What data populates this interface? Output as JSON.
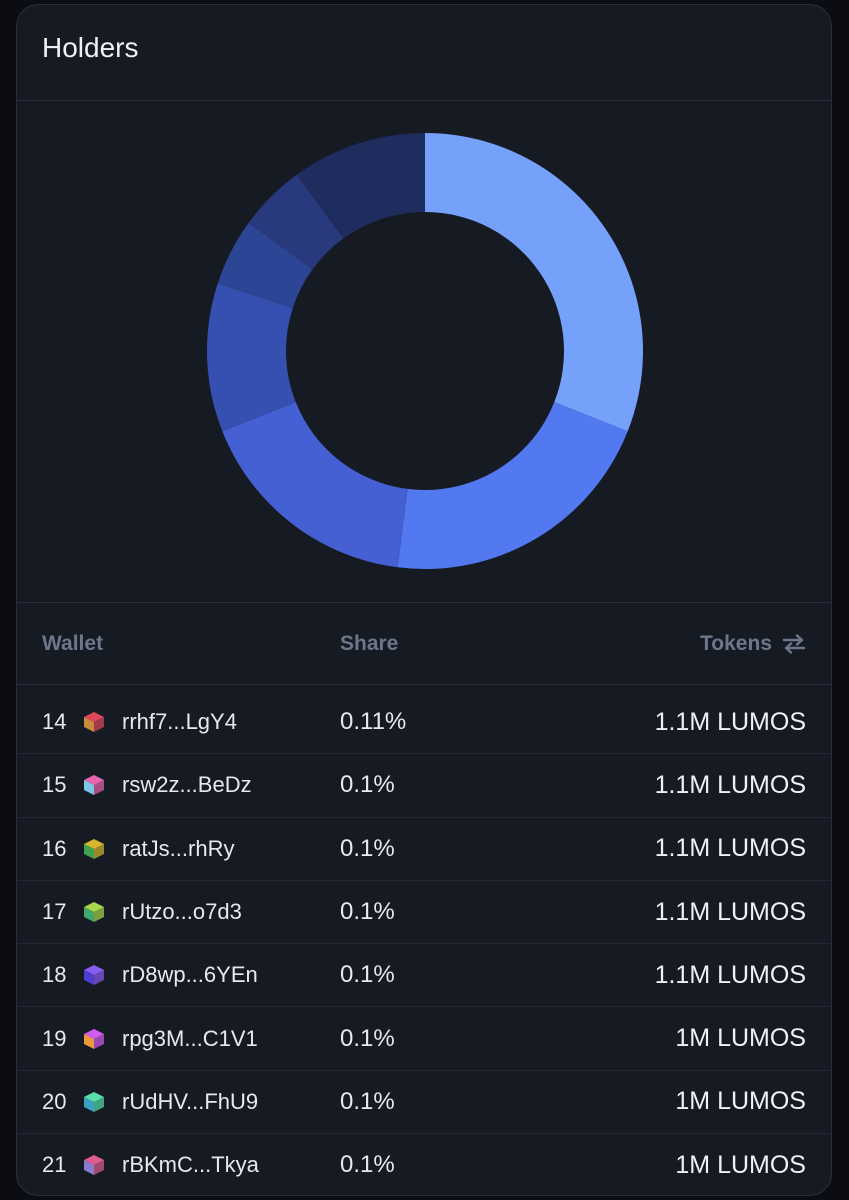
{
  "card": {
    "title": "Holders"
  },
  "chart_data": {
    "type": "pie",
    "style": "donut",
    "values": [
      31,
      21,
      17,
      11,
      5,
      5,
      10
    ],
    "colors": [
      "#76a1fb",
      "#5379f0",
      "#4560d2",
      "#3550b0",
      "#2d4595",
      "#28397d",
      "#1f2c5e"
    ]
  },
  "table": {
    "headers": {
      "wallet": "Wallet",
      "share": "Share",
      "tokens": "Tokens"
    },
    "rows": [
      {
        "rank": "14",
        "wallet": "rrhf7...LgY4",
        "share": "0.11%",
        "tokens": "1.1M LUMOS",
        "c1": "#e0475d",
        "c2": "#c98a3c"
      },
      {
        "rank": "15",
        "wallet": "rsw2z...BeDz",
        "share": "0.1%",
        "tokens": "1.1M LUMOS",
        "c1": "#e866b0",
        "c2": "#7ec6e8"
      },
      {
        "rank": "16",
        "wallet": "ratJs...rhRy",
        "share": "0.1%",
        "tokens": "1.1M LUMOS",
        "c1": "#d6b62e",
        "c2": "#3fa04d"
      },
      {
        "rank": "17",
        "wallet": "rUtzo...o7d3",
        "share": "0.1%",
        "tokens": "1.1M LUMOS",
        "c1": "#a8d84a",
        "c2": "#3fa868"
      },
      {
        "rank": "18",
        "wallet": "rD8wp...6YEn",
        "share": "0.1%",
        "tokens": "1.1M LUMOS",
        "c1": "#8a5cf0",
        "c2": "#4e3bd0"
      },
      {
        "rank": "19",
        "wallet": "rpg3M...C1V1",
        "share": "0.1%",
        "tokens": "1M LUMOS",
        "c1": "#d05cf0",
        "c2": "#e89a3c"
      },
      {
        "rank": "20",
        "wallet": "rUdHV...FhU9",
        "share": "0.1%",
        "tokens": "1M LUMOS",
        "c1": "#56e0a8",
        "c2": "#3ca0c0"
      },
      {
        "rank": "21",
        "wallet": "rBKmC...Tkya",
        "share": "0.1%",
        "tokens": "1M LUMOS",
        "c1": "#e05c8e",
        "c2": "#8a7ad0"
      }
    ]
  }
}
